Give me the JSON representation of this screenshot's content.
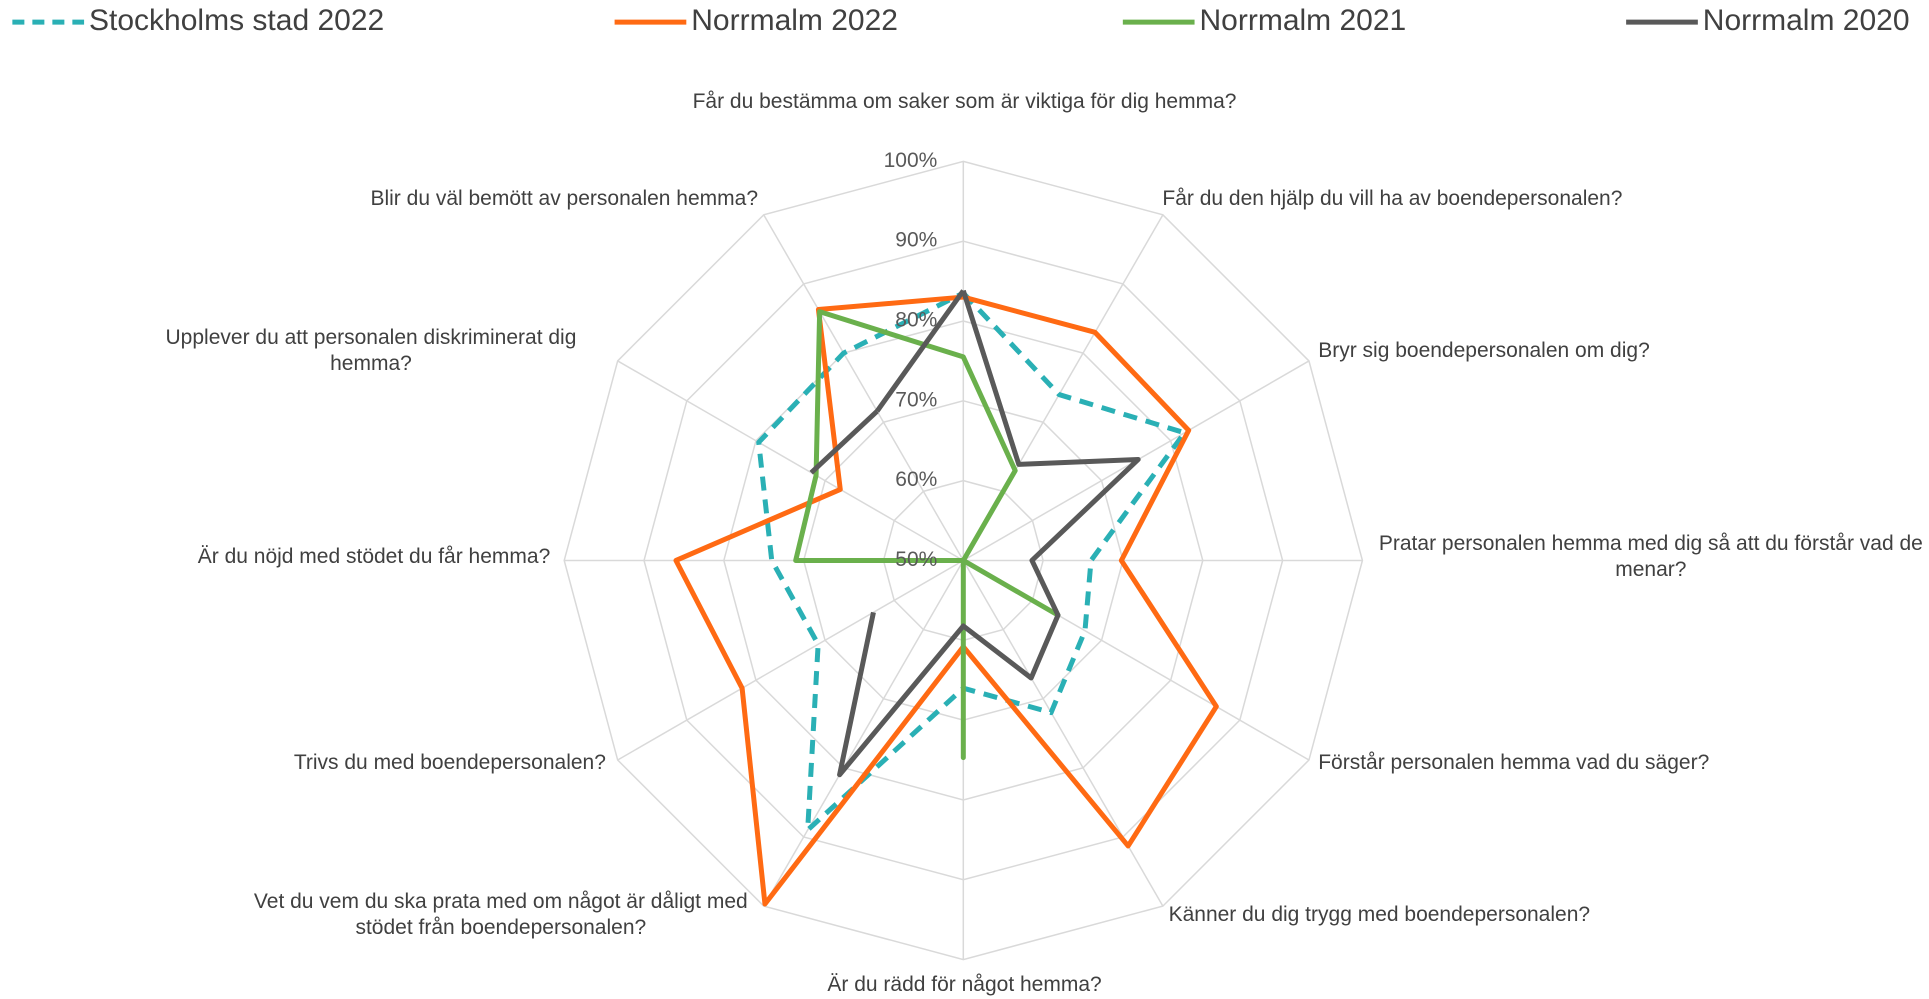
{
  "chart_data": {
    "type": "radar",
    "categories": [
      "Får du bestämma om saker som är viktiga för dig hemma?",
      "Får du den hjälp du vill ha av boendepersonalen?",
      "Bryr sig boendepersonalen om dig?",
      "Pratar personalen hemma med dig så att du förstår vad de menar?",
      "Förstår personalen hemma vad du säger?",
      "Känner du dig trygg med boendepersonalen?",
      "Är du rädd för något hemma?",
      "Vet du vem du ska prata med om något är dåligt med stödet från boendepersonalen?",
      "Trivs du med boendepersonalen?",
      "Är du nöjd med stödet du får hemma?",
      "Upplever du att personalen diskriminerat dig hemma?",
      "Blir du väl bemött av personalen hemma?"
    ],
    "series": [
      {
        "name": "Stockholms stad 2022",
        "color": "#2ab0b5",
        "dashed": true,
        "values": [
          83.5,
          74,
          82,
          66,
          67.6,
          72,
          66,
          89,
          71,
          74,
          79.6,
          80
        ]
      },
      {
        "name": "Norrmalm 2022",
        "color": "#ff6a13",
        "values": [
          83,
          83,
          82.6,
          69.8,
          86.6,
          91.3,
          60.8,
          99.7,
          82,
          86,
          67.8,
          86.3
        ]
      },
      {
        "name": "Norrmalm 2021",
        "color": "#6ab04c",
        "values": [
          75.5,
          63,
          50,
          50,
          63.7,
          50,
          74.7,
          50,
          50,
          71,
          71.3,
          86
        ]
      },
      {
        "name": "Norrmalm 2020",
        "color": "#595959",
        "values": [
          83.8,
          63.9,
          75.3,
          58.6,
          63.7,
          67,
          58.2,
          81,
          63,
          null,
          72,
          71.6
        ]
      }
    ],
    "ylim": [
      50,
      100
    ],
    "yticks": [
      {
        "value": 50,
        "label": "50%"
      },
      {
        "value": 60,
        "label": "60%"
      },
      {
        "value": 70,
        "label": "70%"
      },
      {
        "value": 80,
        "label": "80%"
      },
      {
        "value": 90,
        "label": "90%"
      },
      {
        "value": 100,
        "label": "100%"
      }
    ],
    "grid": true,
    "legend": "top"
  }
}
